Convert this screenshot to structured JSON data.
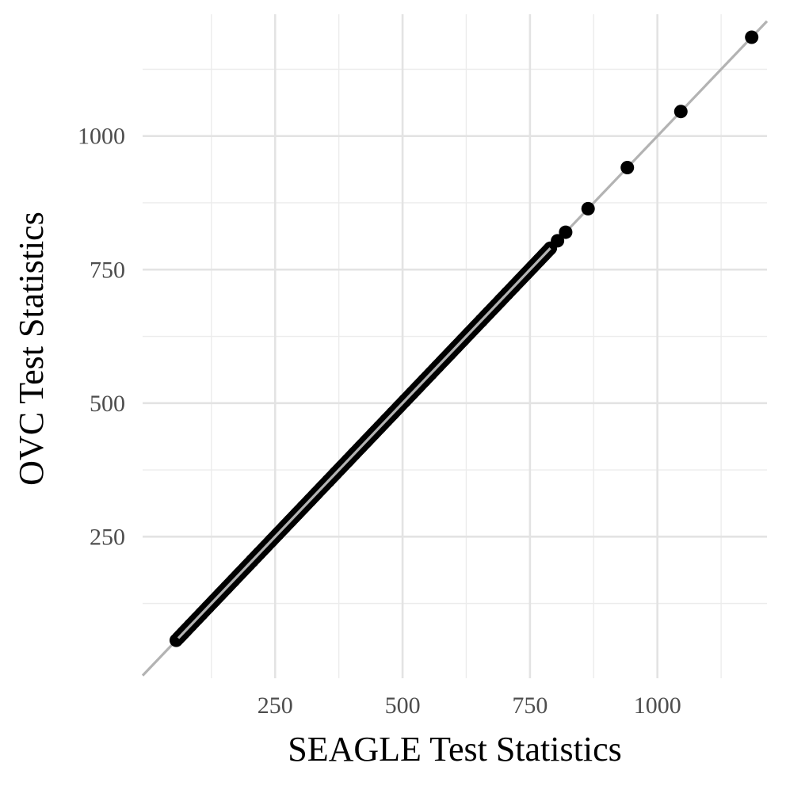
{
  "chart_data": {
    "type": "scatter",
    "xlabel": "SEAGLE Test Statistics",
    "ylabel": "OVC Test Statistics",
    "xlim": [
      -10,
      1215
    ],
    "ylim": [
      -15,
      1228
    ],
    "x_ticks": [
      250,
      500,
      750,
      1000
    ],
    "y_ticks": [
      250,
      500,
      750,
      1000
    ],
    "x_tick_labels": [
      "250",
      "500",
      "750",
      "1000"
    ],
    "y_tick_labels": [
      "250",
      "500",
      "750",
      "1000"
    ],
    "grid": true,
    "reference_line": {
      "slope": 1,
      "intercept": 0,
      "color": "#b3b3b3"
    },
    "point_color": "#000000",
    "series": [
      {
        "points": [
          [
            56,
            56
          ],
          [
            74,
            74
          ],
          [
            84,
            84
          ],
          [
            96,
            96
          ],
          [
            106,
            106
          ],
          [
            118,
            118
          ],
          [
            130,
            130
          ],
          [
            142,
            142
          ],
          [
            155,
            155
          ],
          [
            168,
            168
          ],
          [
            180,
            180
          ],
          [
            193,
            193
          ],
          [
            205,
            205
          ],
          [
            218,
            218
          ],
          [
            230,
            230
          ],
          [
            243,
            243
          ],
          [
            255,
            255
          ],
          [
            268,
            268
          ],
          [
            280,
            280
          ],
          [
            293,
            293
          ],
          [
            305,
            305
          ],
          [
            318,
            318
          ],
          [
            330,
            330
          ],
          [
            343,
            343
          ],
          [
            355,
            355
          ],
          [
            368,
            368
          ],
          [
            380,
            380
          ],
          [
            393,
            393
          ],
          [
            405,
            405
          ],
          [
            418,
            418
          ],
          [
            430,
            430
          ],
          [
            443,
            443
          ],
          [
            455,
            455
          ],
          [
            468,
            468
          ],
          [
            480,
            480
          ],
          [
            493,
            493
          ],
          [
            505,
            505
          ],
          [
            518,
            518
          ],
          [
            530,
            530
          ],
          [
            543,
            543
          ],
          [
            555,
            555
          ],
          [
            568,
            568
          ],
          [
            580,
            580
          ],
          [
            593,
            593
          ],
          [
            605,
            605
          ],
          [
            618,
            618
          ],
          [
            630,
            630
          ],
          [
            643,
            643
          ],
          [
            655,
            655
          ],
          [
            668,
            668
          ],
          [
            680,
            680
          ],
          [
            693,
            693
          ],
          [
            705,
            705
          ],
          [
            718,
            718
          ],
          [
            730,
            730
          ],
          [
            743,
            743
          ],
          [
            755,
            755
          ],
          [
            768,
            768
          ],
          [
            778,
            778
          ],
          [
            789,
            789
          ],
          [
            804,
            804
          ],
          [
            820,
            820
          ],
          [
            864,
            864
          ],
          [
            941,
            941
          ],
          [
            1046,
            1046
          ],
          [
            1185,
            1185
          ]
        ]
      }
    ]
  }
}
